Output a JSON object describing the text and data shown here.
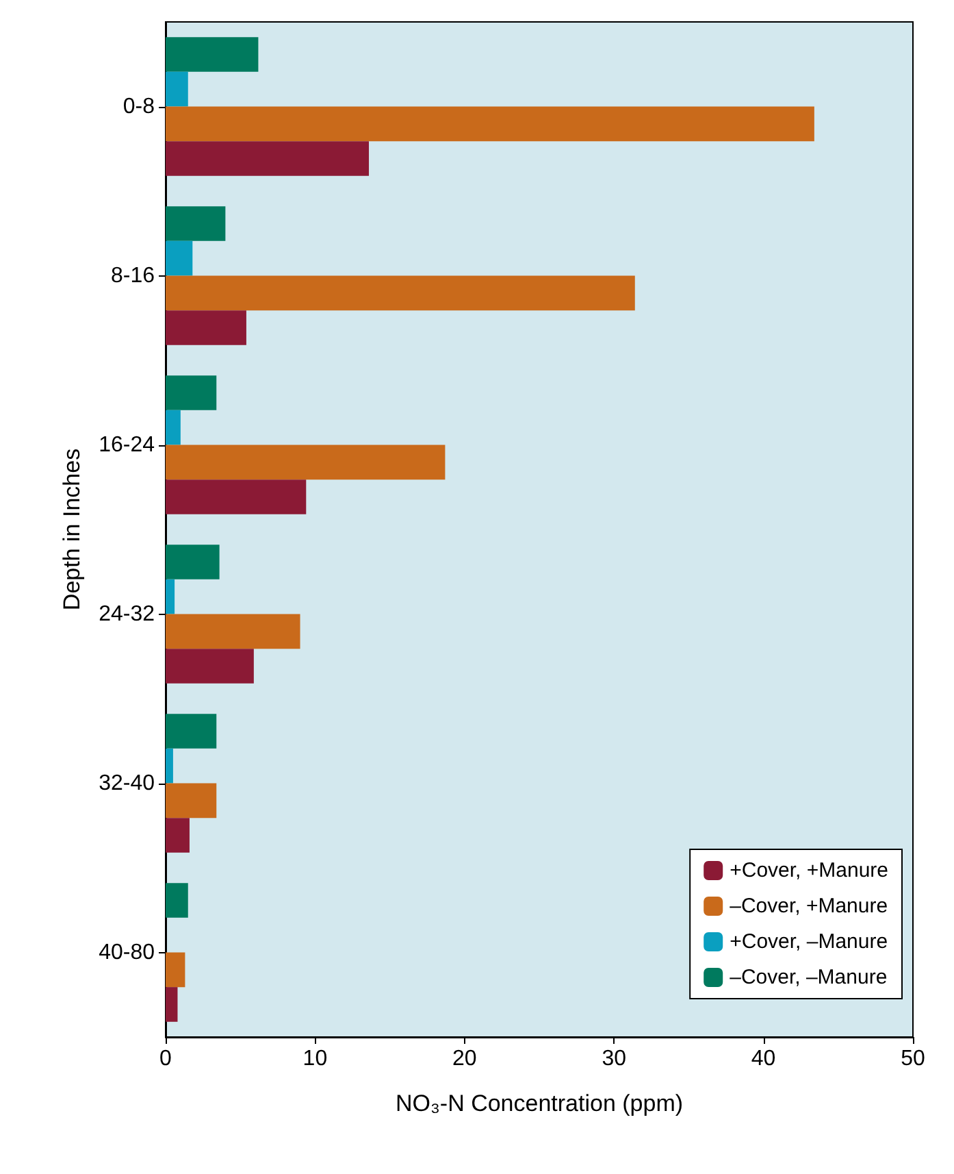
{
  "chart_data": {
    "type": "bar",
    "orientation": "horizontal",
    "xlabel": "NO₃-N Concentration (ppm)",
    "ylabel": "Depth in Inches",
    "categories": [
      "0-8",
      "8-16",
      "16-24",
      "24-32",
      "32-40",
      "40-80"
    ],
    "series": [
      {
        "name": "–Cover, –Manure",
        "color": "#007a5e",
        "values": [
          6.2,
          4.0,
          3.4,
          3.6,
          3.4,
          1.5
        ]
      },
      {
        "name": "+Cover, –Manure",
        "color": "#0a9fc0",
        "values": [
          1.5,
          1.8,
          1.0,
          0.6,
          0.5,
          null
        ]
      },
      {
        "name": "–Cover, +Manure",
        "color": "#c96a1b",
        "values": [
          43.4,
          31.4,
          18.7,
          9.0,
          3.4,
          1.3
        ]
      },
      {
        "name": "+Cover, +Manure",
        "color": "#8b1a35",
        "values": [
          13.6,
          5.4,
          9.4,
          5.9,
          1.6,
          0.8
        ]
      }
    ],
    "xlim": [
      0,
      50
    ],
    "xticks": [
      0,
      10,
      20,
      30,
      40,
      50
    ],
    "grid": false,
    "legend": "bottom right"
  }
}
